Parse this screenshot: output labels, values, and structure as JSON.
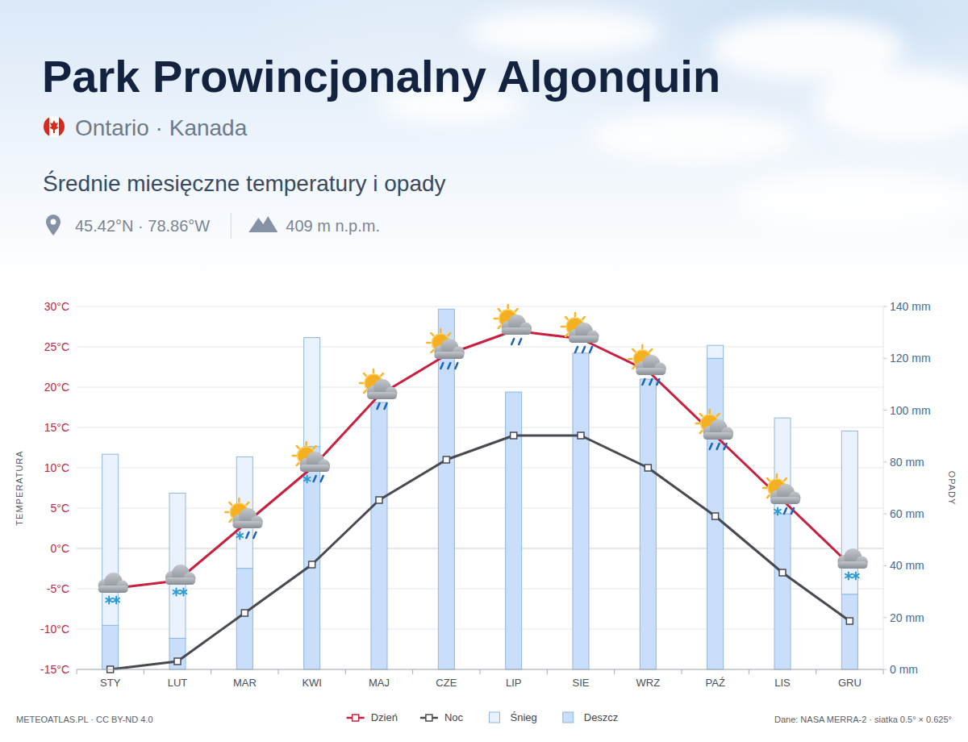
{
  "header": {
    "title": "Park Prowincjonalny Algonquin",
    "location": "Ontario · Kanada",
    "subtitle": "Średnie miesięczne temperatury i opady",
    "coords": "45.42°N · 78.86°W",
    "elevation": "409 m n.p.m."
  },
  "chart_data": {
    "type": "bar",
    "categories": [
      "STY",
      "LUT",
      "MAR",
      "KWI",
      "MAJ",
      "CZE",
      "LIP",
      "SIE",
      "WRZ",
      "PAŹ",
      "LIS",
      "GRU"
    ],
    "series": [
      {
        "name": "Dzień",
        "type": "line",
        "color": "#c8203f",
        "marker": "square",
        "values": [
          -5,
          -4,
          3,
          10,
          19,
          24,
          27,
          26,
          22,
          14,
          6,
          -2
        ]
      },
      {
        "name": "Noc",
        "type": "line",
        "color": "#474a50",
        "marker": "square",
        "values": [
          -15,
          -14,
          -8,
          -2,
          6,
          11,
          14,
          14,
          10,
          4,
          -3,
          -9
        ]
      },
      {
        "name": "Śnieg",
        "type": "bar",
        "axis": "y2",
        "color": "#eaf3fd",
        "values": [
          66,
          56,
          43,
          42,
          0,
          0,
          0,
          0,
          0,
          5,
          37,
          63
        ]
      },
      {
        "name": "Deszcz",
        "type": "bar",
        "axis": "y2",
        "color": "#c9defa",
        "values": [
          17,
          12,
          39,
          86,
          103,
          139,
          107,
          122,
          112,
          120,
          60,
          29
        ]
      }
    ],
    "stacked": true,
    "ylabel": "TEMPERATURA",
    "y2label": "OPADY",
    "ylim": [
      -15,
      30
    ],
    "yticks": [
      {
        "value": -15,
        "label": "-15°C"
      },
      {
        "value": -10,
        "label": "-10°C"
      },
      {
        "value": -5,
        "label": "-5°C"
      },
      {
        "value": 0,
        "label": "0°C"
      },
      {
        "value": 5,
        "label": "5°C"
      },
      {
        "value": 10,
        "label": "10°C"
      },
      {
        "value": 15,
        "label": "15°C"
      },
      {
        "value": 20,
        "label": "20°C"
      },
      {
        "value": 25,
        "label": "25°C"
      },
      {
        "value": 30,
        "label": "30°C"
      }
    ],
    "y2lim": [
      0,
      140
    ],
    "y2ticks": [
      {
        "value": 0,
        "label": "0 mm"
      },
      {
        "value": 20,
        "label": "20 mm"
      },
      {
        "value": 40,
        "label": "40 mm"
      },
      {
        "value": 60,
        "label": "60 mm"
      },
      {
        "value": 80,
        "label": "80 mm"
      },
      {
        "value": 100,
        "label": "100 mm"
      },
      {
        "value": 120,
        "label": "120 mm"
      },
      {
        "value": 140,
        "label": "140 mm"
      }
    ],
    "grid": true,
    "legend": "bottom"
  },
  "footer": {
    "credit": "METEOATLAS.PL · CC BY-ND 4.0",
    "source": "Dane: NASA MERRA-2 · siatka 0.5° × 0.625°"
  }
}
